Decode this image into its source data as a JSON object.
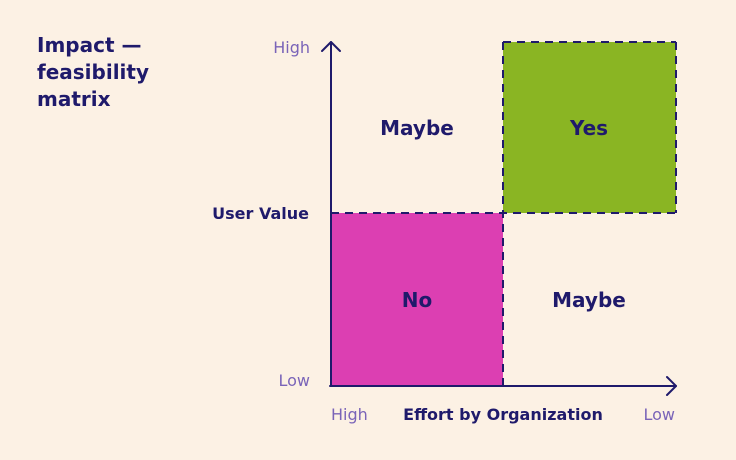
{
  "title": {
    "line1": "Impact —",
    "line2": "feasibility",
    "line3": "matrix"
  },
  "y_axis": {
    "high": "High",
    "mid": "User Value",
    "low": "Low"
  },
  "x_axis": {
    "high": "High",
    "label": "Effort by Organization",
    "low": "Low"
  },
  "quadrants": {
    "top_left": {
      "label": "Maybe",
      "color": "#fcf1e4"
    },
    "top_right": {
      "label": "Yes",
      "color": "#8ab523"
    },
    "bottom_left": {
      "label": "No",
      "color": "#dc3fb2"
    },
    "bottom_right": {
      "label": "Maybe",
      "color": "#fcf1e4"
    }
  },
  "colors": {
    "background": "#fcf1e4",
    "ink": "#1f1a6b",
    "axis_text": "#7a64b8"
  }
}
